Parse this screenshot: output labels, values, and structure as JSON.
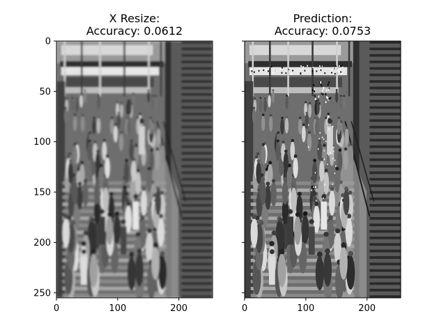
{
  "chart_data": [
    {
      "type": "image",
      "title_lines": [
        "X Resize:",
        "Accuracy: 0.0612"
      ],
      "image_description": "grayscale crowd on stairs",
      "xlim": [
        0,
        255
      ],
      "ylim": [
        255,
        0
      ],
      "xticks": [
        0,
        100,
        200
      ],
      "yticks": [
        0,
        50,
        100,
        150,
        200,
        250
      ],
      "ytick_labels_visible": true
    },
    {
      "type": "image",
      "title_lines": [
        "Prediction:",
        "Accuracy: 0.0753"
      ],
      "image_description": "grayscale crowd on stairs, sharper, with white/black artifacts",
      "xlim": [
        0,
        255
      ],
      "ylim": [
        255,
        0
      ],
      "xticks": [
        0,
        100,
        200
      ],
      "yticks": [
        0,
        50,
        100,
        150,
        200,
        250
      ],
      "ytick_labels_visible": false
    }
  ]
}
